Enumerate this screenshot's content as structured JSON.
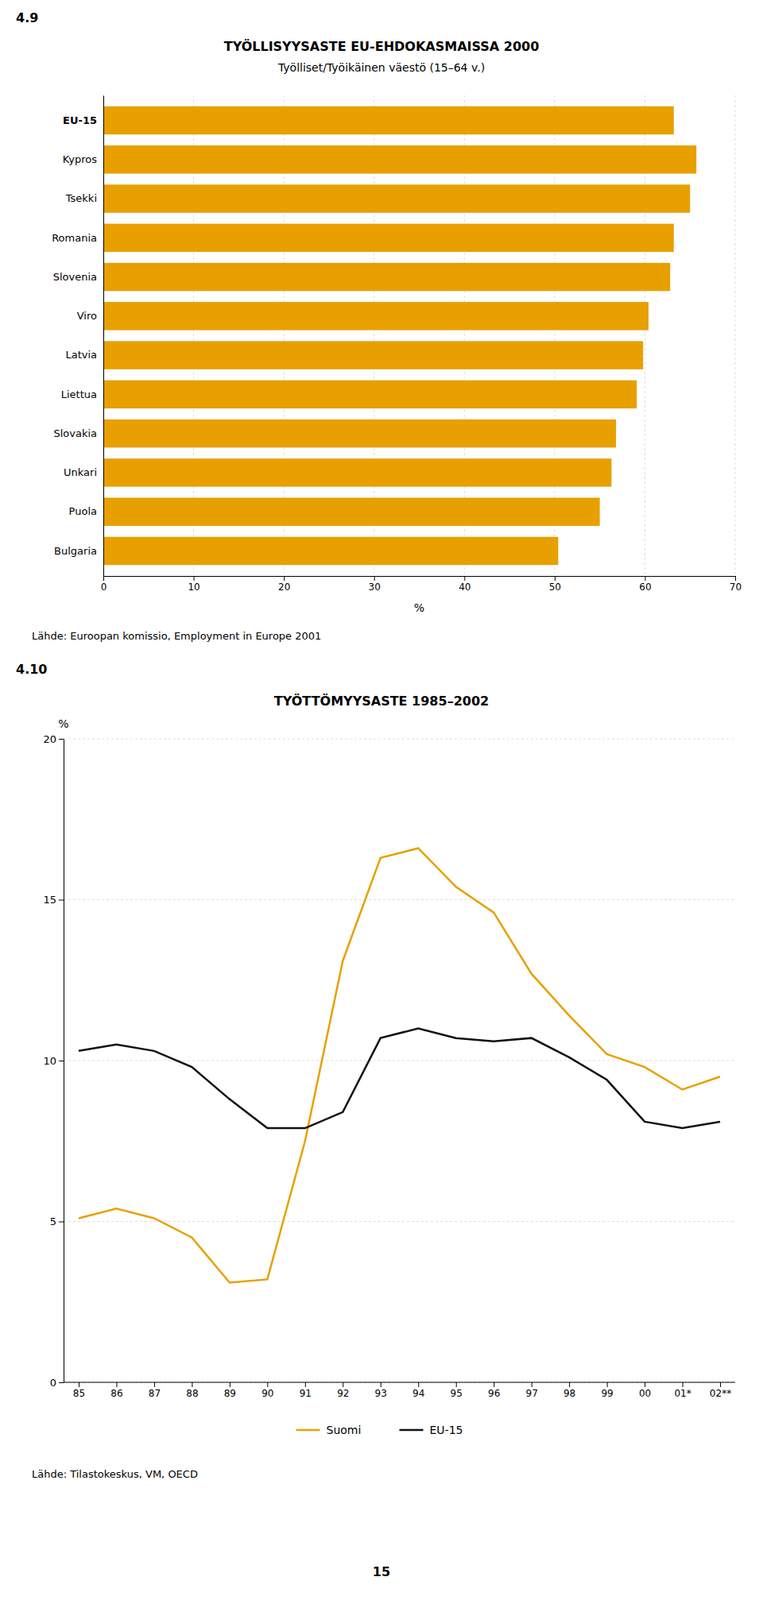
{
  "chart_data": [
    {
      "type": "bar",
      "orientation": "horizontal",
      "title": "TYÖLLISYYSASTE EU-EHDOKASMAISSA 2000",
      "subtitle": "Työlliset/Työikäinen väestö (15–64 v.)",
      "x_label": "%",
      "categories": [
        "EU-15",
        "Kypros",
        "Tsekki",
        "Romania",
        "Slovenia",
        "Viro",
        "Latvia",
        "Liettua",
        "Slovakia",
        "Unkari",
        "Puola",
        "Bulgaria"
      ],
      "values": [
        63.2,
        65.7,
        65.0,
        63.2,
        62.8,
        60.4,
        59.8,
        59.1,
        56.8,
        56.3,
        55.0,
        50.4
      ],
      "color": "#E8A000",
      "xlim": [
        0,
        70
      ],
      "xticks": [
        0,
        10,
        20,
        30,
        40,
        50,
        60,
        70
      ],
      "grid": true,
      "annotations": [
        "4.9",
        "Lähde: Euroopan komissio, Employment in Europe 2001"
      ]
    },
    {
      "type": "line",
      "title": "TYÖTTÖMYYSASTE 1985–2002",
      "y_label": "%",
      "categories": [
        "85",
        "86",
        "87",
        "88",
        "89",
        "90",
        "91",
        "92",
        "93",
        "94",
        "95",
        "96",
        "97",
        "98",
        "99",
        "00",
        "01*",
        "02**"
      ],
      "series": [
        {
          "name": "Suomi",
          "color": "#E8A000",
          "values": [
            5.1,
            5.4,
            5.1,
            4.5,
            3.1,
            3.2,
            7.5,
            13.1,
            16.3,
            16.6,
            15.4,
            14.6,
            12.7,
            11.4,
            10.2,
            9.8,
            9.1,
            9.5
          ]
        },
        {
          "name": "EU-15",
          "color": "#111111",
          "values": [
            10.3,
            10.5,
            10.3,
            9.8,
            8.8,
            7.9,
            7.9,
            8.4,
            10.7,
            11.0,
            10.7,
            10.6,
            10.7,
            10.1,
            9.4,
            8.1,
            7.9,
            8.1
          ]
        }
      ],
      "ylim": [
        0,
        20
      ],
      "yticks": [
        0,
        5,
        10,
        15,
        20
      ],
      "grid": true,
      "legend": "bottom",
      "annotations": [
        "4.10",
        "Lähde: Tilastokeskus, VM, OECD"
      ]
    }
  ],
  "annotations": [
    "15"
  ]
}
